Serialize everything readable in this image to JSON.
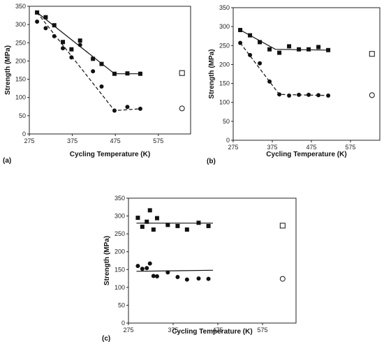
{
  "chart_data": [
    {
      "type": "scatter",
      "panel_label": "(a)",
      "xlabel": "Cycling Temperature (K)",
      "ylabel": "Strength (MPa)",
      "xlim": [
        275,
        650
      ],
      "ylim": [
        0,
        350
      ],
      "xticks": [
        275,
        375,
        475,
        575
      ],
      "yticks": [
        0,
        50,
        100,
        150,
        200,
        250,
        300,
        350
      ],
      "series": [
        {
          "marker": "filled-square",
          "points": [
            [
              293,
              333
            ],
            [
              313,
              320
            ],
            [
              333,
              298
            ],
            [
              353,
              252
            ],
            [
              373,
              232
            ],
            [
              393,
              256
            ],
            [
              423,
              206
            ],
            [
              443,
              192
            ],
            [
              473,
              165
            ],
            [
              503,
              166
            ],
            [
              533,
              165
            ]
          ],
          "fit": {
            "style": "solid",
            "points": [
              [
                293,
                333
              ],
              [
                473,
                165
              ],
              [
                533,
                165
              ]
            ]
          }
        },
        {
          "marker": "filled-circle",
          "points": [
            [
              293,
              308
            ],
            [
              313,
              290
            ],
            [
              333,
              268
            ],
            [
              353,
              235
            ],
            [
              373,
              210
            ],
            [
              393,
              244
            ],
            [
              423,
              172
            ],
            [
              443,
              130
            ],
            [
              473,
              64
            ],
            [
              503,
              74
            ],
            [
              533,
              69
            ]
          ],
          "fit": {
            "style": "dashed",
            "points": [
              [
                293,
                333
              ],
              [
                473,
                64
              ],
              [
                533,
                69
              ]
            ]
          }
        },
        {
          "marker": "open-square",
          "points": [
            [
              630,
              167
            ]
          ]
        },
        {
          "marker": "open-circle",
          "points": [
            [
              630,
              70
            ]
          ]
        }
      ]
    },
    {
      "type": "scatter",
      "panel_label": "(b)",
      "xlabel": "Cycling Temperature (K)",
      "ylabel": "Strength (MPa)",
      "xlim": [
        275,
        650
      ],
      "ylim": [
        0,
        350
      ],
      "xticks": [
        275,
        375,
        475,
        575
      ],
      "yticks": [
        0,
        50,
        100,
        150,
        200,
        250,
        300,
        350
      ],
      "series": [
        {
          "marker": "filled-square",
          "points": [
            [
              293,
              291
            ],
            [
              318,
              277
            ],
            [
              343,
              259
            ],
            [
              368,
              240
            ],
            [
              393,
              231
            ],
            [
              418,
              248
            ],
            [
              443,
              240
            ],
            [
              468,
              240
            ],
            [
              493,
              246
            ],
            [
              518,
              238
            ]
          ],
          "fit": {
            "style": "solid",
            "points": [
              [
                293,
                291
              ],
              [
                383,
                240
              ],
              [
                518,
                238
              ]
            ]
          }
        },
        {
          "marker": "filled-circle",
          "points": [
            [
              293,
              257
            ],
            [
              318,
              225
            ],
            [
              343,
              203
            ],
            [
              368,
              155
            ],
            [
              393,
              121
            ],
            [
              418,
              118
            ],
            [
              443,
              120
            ],
            [
              468,
              120
            ],
            [
              493,
              119
            ],
            [
              518,
              118
            ]
          ],
          "fit": {
            "style": "dashed",
            "points": [
              [
                293,
                257
              ],
              [
                393,
                121
              ],
              [
                518,
                118
              ]
            ]
          }
        },
        {
          "marker": "open-square",
          "points": [
            [
              630,
              228
            ]
          ]
        },
        {
          "marker": "open-circle",
          "points": [
            [
              630,
              119
            ]
          ]
        }
      ]
    },
    {
      "type": "scatter",
      "panel_label": "(c)",
      "xlabel": "Cycling Temperature (K)",
      "ylabel": "Strength (MPa)",
      "xlim": [
        275,
        650
      ],
      "ylim": [
        0,
        350
      ],
      "xticks": [
        275,
        375,
        475,
        575
      ],
      "yticks": [
        0,
        50,
        100,
        150,
        200,
        250,
        300,
        350
      ],
      "series": [
        {
          "marker": "filled-square",
          "points": [
            [
              296,
              295
            ],
            [
              306,
              270
            ],
            [
              316,
              284
            ],
            [
              323,
              316
            ],
            [
              331,
              262
            ],
            [
              339,
              294
            ],
            [
              363,
              275
            ],
            [
              385,
              272
            ],
            [
              406,
              262
            ],
            [
              432,
              281
            ],
            [
              454,
              272
            ]
          ],
          "fit": {
            "style": "solid",
            "points": [
              [
                293,
                280
              ],
              [
                464,
                280
              ]
            ]
          }
        },
        {
          "marker": "filled-circle",
          "points": [
            [
              296,
              160
            ],
            [
              306,
              152
            ],
            [
              316,
              154
            ],
            [
              323,
              167
            ],
            [
              331,
              132
            ],
            [
              339,
              131
            ],
            [
              363,
              142
            ],
            [
              385,
              129
            ],
            [
              406,
              122
            ],
            [
              432,
              125
            ],
            [
              454,
              124
            ]
          ],
          "fit": {
            "style": "solid",
            "points": [
              [
                293,
                145
              ],
              [
                464,
                148
              ]
            ]
          }
        },
        {
          "marker": "open-square",
          "points": [
            [
              620,
              273
            ]
          ]
        },
        {
          "marker": "open-circle",
          "points": [
            [
              620,
              124
            ]
          ]
        }
      ]
    }
  ]
}
